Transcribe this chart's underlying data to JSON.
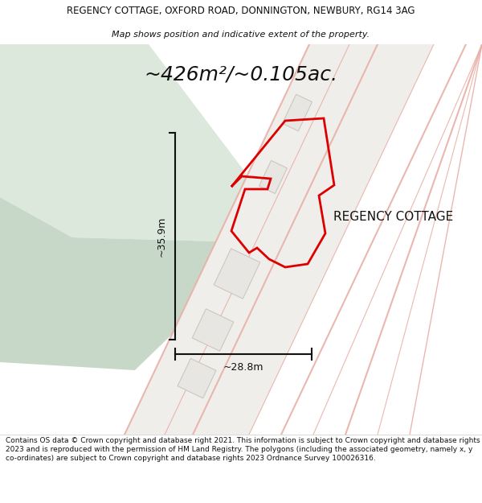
{
  "title_line1": "REGENCY COTTAGE, OXFORD ROAD, DONNINGTON, NEWBURY, RG14 3AG",
  "title_line2": "Map shows position and indicative extent of the property.",
  "area_text": "~426m²/~0.105ac.",
  "property_label": "REGENCY COTTAGE",
  "dim_horizontal": "~28.8m",
  "dim_vertical": "~35.9m",
  "footer_text": "Contains OS data © Crown copyright and database right 2021. This information is subject to Crown copyright and database rights 2023 and is reproduced with the permission of HM Land Registry. The polygons (including the associated geometry, namely x, y co-ordinates) are subject to Crown copyright and database rights 2023 Ordnance Survey 100026316.",
  "map_bg": "#ffffff",
  "green_light": "#dce8dc",
  "green_dark": "#c8d8c8",
  "road_area_bg": "#f8f8f8",
  "plot_area_bg": "#f0eeea",
  "road_line_color": "#e8b0a8",
  "building_fill": "#e8e6e2",
  "building_line": "#ccc8c0",
  "property_color": "#dd0000",
  "dim_line_color": "#111111",
  "text_color": "#111111",
  "white": "#ffffff",
  "title_fontsize": 8.5,
  "subtitle_fontsize": 8.0,
  "area_fontsize": 18,
  "label_fontsize": 11,
  "dim_fontsize": 9,
  "footer_fontsize": 6.5
}
